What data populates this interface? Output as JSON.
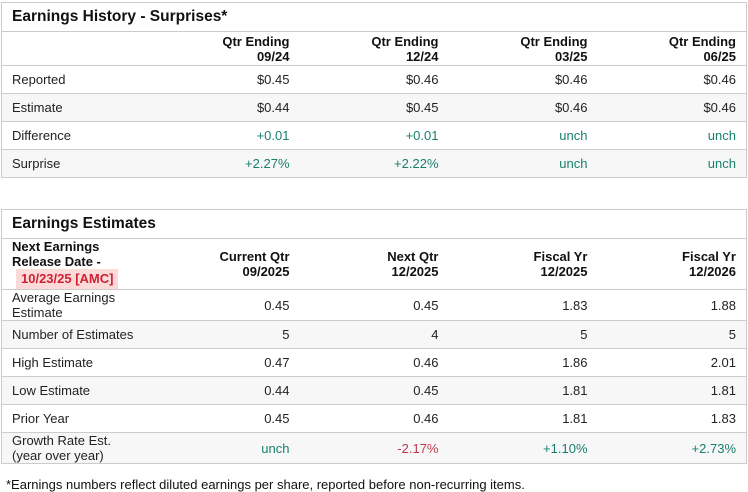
{
  "history": {
    "title": "Earnings History - Surprises*",
    "columns": [
      "Qtr Ending\n09/24",
      "Qtr Ending\n12/24",
      "Qtr Ending\n03/25",
      "Qtr Ending\n06/25"
    ],
    "rows": [
      {
        "label": "Reported",
        "values": [
          "$0.45",
          "$0.46",
          "$0.46",
          "$0.46"
        ]
      },
      {
        "label": "Estimate",
        "values": [
          "$0.44",
          "$0.45",
          "$0.46",
          "$0.46"
        ]
      },
      {
        "label": "Difference",
        "values": [
          "+0.01",
          "+0.01",
          "unch",
          "unch"
        ]
      },
      {
        "label": "Surprise",
        "values": [
          "+2.27%",
          "+2.22%",
          "unch",
          "unch"
        ]
      }
    ]
  },
  "estimates": {
    "title": "Earnings Estimates",
    "next_release_label": "Next Earnings Release Date -",
    "next_release_date": "10/23/25 [AMC]",
    "columns": [
      "Current Qtr\n09/2025",
      "Next Qtr\n12/2025",
      "Fiscal Yr\n12/2025",
      "Fiscal Yr\n12/2026"
    ],
    "rows": [
      {
        "label": "Average Earnings Estimate",
        "values": [
          "0.45",
          "0.45",
          "1.83",
          "1.88"
        ]
      },
      {
        "label": "Number of Estimates",
        "values": [
          "5",
          "4",
          "5",
          "5"
        ]
      },
      {
        "label": "High Estimate",
        "values": [
          "0.47",
          "0.46",
          "1.86",
          "2.01"
        ]
      },
      {
        "label": "Low Estimate",
        "values": [
          "0.44",
          "0.45",
          "1.81",
          "1.81"
        ]
      },
      {
        "label": "Prior Year",
        "values": [
          "0.45",
          "0.46",
          "1.81",
          "1.83"
        ]
      },
      {
        "label": "Growth Rate Est. (year over year)",
        "values": [
          "unch",
          "-2.17%",
          "+1.10%",
          "+2.73%"
        ]
      }
    ]
  },
  "footnote": "*Earnings numbers reflect diluted earnings per share, reported before non-recurring items.",
  "colors": {
    "positive_green": "#17806d",
    "negative_red": "#c13a4b",
    "release_date_red": "#cc2233",
    "release_date_highlight": "#fcdada",
    "row_stripe": "#f7f7f7",
    "table_border": "#cccccc"
  }
}
